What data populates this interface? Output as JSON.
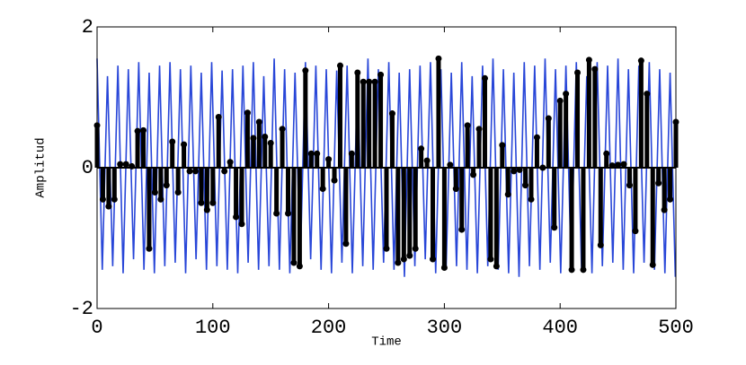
{
  "chart_data": {
    "type": "stem",
    "x_label": "Time",
    "y_label": "Amplitud",
    "xlim": [
      0,
      500
    ],
    "ylim": [
      -2,
      2
    ],
    "xticks": [
      0,
      100,
      200,
      300,
      400,
      500
    ],
    "yticks": [
      -2,
      0,
      2
    ],
    "series": [
      {
        "style": "line",
        "color": "#2846d8",
        "x": [
          0,
          4.5,
          9,
          13.5,
          18,
          22.5,
          27,
          31.5,
          36,
          40.5,
          45,
          49.5,
          54,
          58.5,
          63,
          67.5,
          72,
          76.5,
          81,
          85.5,
          90,
          94.5,
          99,
          103.5,
          108,
          112.5,
          117,
          121.5,
          126,
          130.5,
          135,
          139.5,
          144,
          148.5,
          153,
          157.5,
          162,
          166.5,
          171,
          175.5,
          180,
          184.5,
          189,
          193.5,
          198,
          202.5,
          207,
          211.5,
          216,
          220.5,
          225,
          229.5,
          234,
          238.5,
          243,
          247.5,
          252,
          256.5,
          261,
          265.5,
          270,
          274.5,
          279,
          283.5,
          288,
          292.5,
          297,
          301.5,
          306,
          310.5,
          315,
          319.5,
          324,
          328.5,
          333,
          337.5,
          342,
          346.5,
          351,
          355.5,
          360,
          364.5,
          369,
          373.5,
          378,
          382.5,
          387,
          391.5,
          396,
          400.5,
          405,
          409.5,
          414,
          418.5,
          423,
          427.5,
          432,
          436.5,
          441,
          445.5,
          450,
          454.5,
          459,
          463.5,
          468,
          472.5,
          477,
          481.5,
          486,
          490.5,
          495,
          499.5
        ],
        "values": [
          1.55,
          -1.45,
          1.3,
          -1.4,
          1.45,
          -1.5,
          1.4,
          -1.3,
          1.5,
          -1.45,
          1.35,
          -1.5,
          1.45,
          -1.4,
          1.5,
          -1.35,
          1.4,
          -1.5,
          1.45,
          -1.3,
          1.35,
          -1.45,
          1.5,
          -1.4,
          1.38,
          -1.45,
          1.4,
          -1.5,
          1.45,
          -1.35,
          1.5,
          -1.45,
          1.3,
          -1.4,
          1.55,
          -1.45,
          1.4,
          -1.5,
          1.35,
          -1.4,
          1.5,
          -1.3,
          1.45,
          -1.45,
          1.4,
          -1.5,
          1.38,
          -1.35,
          1.45,
          -1.5,
          1.3,
          -1.4,
          1.55,
          -1.45,
          1.4,
          -1.35,
          1.5,
          -1.45,
          1.35,
          -1.55,
          1.4,
          -1.4,
          1.45,
          -1.3,
          1.5,
          -1.5,
          1.4,
          -1.45,
          1.35,
          -1.4,
          1.5,
          -1.45,
          1.3,
          -1.5,
          1.45,
          -1.4,
          1.55,
          -1.45,
          1.4,
          -1.5,
          1.35,
          -1.55,
          1.5,
          -1.4,
          1.45,
          -1.45,
          1.55,
          -1.35,
          1.4,
          -1.5,
          1.45,
          -1.4,
          1.5,
          -1.45,
          1.3,
          -1.5,
          1.5,
          -1.4,
          1.45,
          -1.35,
          1.55,
          -1.45,
          1.4,
          -1.5,
          1.45,
          -1.35,
          1.5,
          -1.45,
          1.4,
          -1.5,
          1.35,
          -1.55
        ]
      },
      {
        "style": "stem",
        "color": "#000000",
        "x": [
          0,
          5,
          10,
          15,
          20,
          25,
          30,
          35,
          40,
          45,
          50,
          55,
          60,
          65,
          70,
          75,
          80,
          85,
          90,
          95,
          100,
          105,
          110,
          115,
          120,
          125,
          130,
          135,
          140,
          145,
          150,
          155,
          160,
          165,
          170,
          175,
          180,
          185,
          190,
          195,
          200,
          205,
          210,
          215,
          220,
          225,
          230,
          235,
          240,
          245,
          250,
          255,
          260,
          265,
          270,
          275,
          280,
          285,
          290,
          295,
          300,
          305,
          310,
          315,
          320,
          325,
          330,
          335,
          340,
          345,
          350,
          355,
          360,
          365,
          370,
          375,
          380,
          385,
          390,
          395,
          400,
          405,
          410,
          415,
          420,
          425,
          430,
          435,
          440,
          445,
          450,
          455,
          460,
          465,
          470,
          475,
          480,
          485,
          490,
          495,
          500
        ],
        "values": [
          0.6,
          -0.45,
          -0.55,
          -0.45,
          0.05,
          0.05,
          0.02,
          0.52,
          0.53,
          -1.15,
          -0.35,
          -0.45,
          -0.25,
          0.37,
          -0.35,
          0.33,
          -0.05,
          -0.05,
          -0.5,
          -0.6,
          -0.5,
          0.72,
          -0.05,
          0.08,
          -0.7,
          -0.8,
          0.78,
          0.42,
          0.65,
          0.44,
          0.35,
          -0.65,
          0.55,
          -0.65,
          -1.35,
          -1.4,
          1.38,
          0.2,
          0.2,
          -0.3,
          0.12,
          -0.18,
          1.45,
          -1.08,
          0.2,
          1.35,
          1.22,
          1.22,
          1.22,
          1.32,
          -1.15,
          0.77,
          -1.35,
          -1.3,
          -1.25,
          -1.15,
          0.27,
          0.1,
          -1.3,
          1.55,
          -1.42,
          0.04,
          -0.3,
          -0.88,
          0.6,
          -0.1,
          0.55,
          1.27,
          -1.3,
          -1.4,
          0.32,
          -0.38,
          -0.05,
          -0.03,
          -0.25,
          -0.45,
          0.43,
          0.0,
          0.7,
          -0.85,
          0.95,
          1.05,
          -1.45,
          1.35,
          -1.45,
          1.53,
          1.4,
          -1.1,
          0.2,
          0.03,
          0.04,
          0.05,
          -0.25,
          -0.9,
          1.52,
          1.05,
          -1.38,
          -0.22,
          -0.6,
          -0.45,
          0.65
        ]
      }
    ]
  }
}
